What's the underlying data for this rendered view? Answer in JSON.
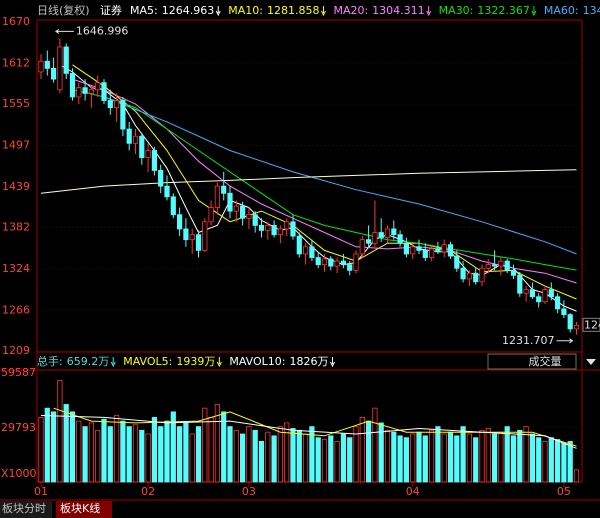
{
  "chart_data": [
    {
      "type": "candlestick",
      "header": [
        "日线(复权)",
        "证券"
      ],
      "up_color": "#ff3232",
      "down_color": "#54fcfc",
      "open": [
        1600,
        1615,
        1605,
        1575,
        1635,
        1598,
        1565,
        1578,
        1570,
        1575,
        1585,
        1560,
        1550,
        1560,
        1520,
        1500,
        1510,
        1480,
        1490,
        1462,
        1440,
        1425,
        1400,
        1380,
        1365,
        1372,
        1350,
        1390,
        1410,
        1440,
        1430,
        1405,
        1412,
        1395,
        1400,
        1385,
        1378,
        1385,
        1372,
        1380,
        1390,
        1370,
        1345,
        1355,
        1340,
        1330,
        1338,
        1328,
        1335,
        1330,
        1322,
        1345,
        1365,
        1360,
        1375,
        1368,
        1380,
        1372,
        1360,
        1345,
        1355,
        1350,
        1340,
        1352,
        1348,
        1358,
        1342,
        1325,
        1310,
        1318,
        1306,
        1325,
        1330,
        1328,
        1335,
        1322,
        1315,
        1290,
        1295,
        1285,
        1278,
        1295,
        1285,
        1268,
        1260,
        1240
      ],
      "high": [
        1625,
        1630,
        1620,
        1646.996,
        1640,
        1605,
        1585,
        1590,
        1580,
        1595,
        1590,
        1575,
        1570,
        1565,
        1530,
        1520,
        1515,
        1500,
        1495,
        1470,
        1455,
        1430,
        1410,
        1395,
        1380,
        1378,
        1395,
        1420,
        1445,
        1460,
        1440,
        1420,
        1418,
        1410,
        1405,
        1395,
        1390,
        1392,
        1385,
        1395,
        1400,
        1375,
        1360,
        1365,
        1348,
        1345,
        1342,
        1340,
        1345,
        1335,
        1350,
        1370,
        1385,
        1420,
        1395,
        1385,
        1392,
        1378,
        1368,
        1360,
        1365,
        1360,
        1356,
        1362,
        1365,
        1362,
        1350,
        1335,
        1322,
        1325,
        1330,
        1338,
        1350,
        1340,
        1338,
        1330,
        1320,
        1300,
        1305,
        1290,
        1300,
        1305,
        1290,
        1280,
        1262,
        1250
      ],
      "low": [
        1590,
        1595,
        1585,
        1570,
        1590,
        1560,
        1555,
        1560,
        1550,
        1565,
        1555,
        1540,
        1530,
        1510,
        1490,
        1485,
        1470,
        1460,
        1455,
        1430,
        1420,
        1395,
        1370,
        1355,
        1345,
        1340,
        1348,
        1385,
        1400,
        1420,
        1395,
        1390,
        1385,
        1380,
        1375,
        1368,
        1365,
        1368,
        1360,
        1370,
        1365,
        1340,
        1330,
        1335,
        1325,
        1320,
        1322,
        1318,
        1325,
        1315,
        1318,
        1340,
        1355,
        1355,
        1362,
        1360,
        1365,
        1355,
        1340,
        1338,
        1345,
        1335,
        1335,
        1345,
        1340,
        1338,
        1320,
        1305,
        1300,
        1302,
        1300,
        1318,
        1322,
        1315,
        1318,
        1310,
        1285,
        1278,
        1282,
        1270,
        1275,
        1280,
        1262,
        1255,
        1235,
        1231.707
      ],
      "close": [
        1615,
        1605,
        1590,
        1635,
        1598,
        1565,
        1578,
        1570,
        1575,
        1585,
        1560,
        1550,
        1560,
        1520,
        1500,
        1510,
        1480,
        1490,
        1462,
        1440,
        1425,
        1400,
        1380,
        1365,
        1372,
        1350,
        1390,
        1410,
        1440,
        1430,
        1405,
        1412,
        1395,
        1400,
        1385,
        1378,
        1385,
        1372,
        1380,
        1390,
        1370,
        1345,
        1355,
        1340,
        1330,
        1338,
        1328,
        1335,
        1330,
        1322,
        1345,
        1365,
        1360,
        1375,
        1368,
        1380,
        1372,
        1360,
        1345,
        1355,
        1350,
        1340,
        1352,
        1348,
        1358,
        1342,
        1325,
        1310,
        1318,
        1306,
        1325,
        1330,
        1328,
        1335,
        1322,
        1315,
        1290,
        1295,
        1285,
        1278,
        1295,
        1285,
        1268,
        1260,
        1240,
        1245
      ],
      "ylim": [
        1209,
        1670
      ],
      "yticks": [
        1670,
        1612,
        1555,
        1497,
        1439,
        1382,
        1324,
        1266,
        1209
      ],
      "xticks": [
        {
          "value": 0,
          "label": "01"
        },
        {
          "value": 17,
          "label": "02"
        },
        {
          "value": 33,
          "label": "03"
        },
        {
          "value": 59,
          "label": "04"
        },
        {
          "value": 83,
          "label": "05"
        }
      ],
      "ma_lines": [
        {
          "name": "MA5:",
          "color": "#ffffff",
          "legend_label": "1264.963",
          "x": [
            3,
            5,
            8,
            10,
            13,
            15,
            18,
            20,
            23,
            25,
            28,
            30,
            33,
            35,
            38,
            40,
            43,
            45,
            48,
            50,
            53,
            55,
            58,
            60,
            63,
            65,
            68,
            70,
            73,
            75,
            78,
            80,
            83,
            85
          ],
          "values": [
            1610,
            1600,
            1578,
            1575,
            1555,
            1525,
            1490,
            1465,
            1410,
            1375,
            1385,
            1420,
            1410,
            1392,
            1378,
            1382,
            1355,
            1340,
            1330,
            1333,
            1365,
            1372,
            1362,
            1352,
            1348,
            1348,
            1318,
            1315,
            1330,
            1325,
            1295,
            1290,
            1272,
            1264.963
          ]
        },
        {
          "name": "MA10:",
          "color": "#ffff00",
          "legend_label": "1281.858",
          "x": [
            5,
            10,
            15,
            20,
            25,
            30,
            35,
            40,
            45,
            50,
            55,
            60,
            65,
            70,
            75,
            80,
            85
          ],
          "values": [
            1610,
            1580,
            1545,
            1490,
            1420,
            1390,
            1405,
            1385,
            1350,
            1335,
            1360,
            1360,
            1350,
            1320,
            1322,
            1300,
            1281.858
          ]
        },
        {
          "name": "MA20:",
          "color": "#ff80ff",
          "legend_label": "1304.311",
          "x": [
            5,
            10,
            15,
            20,
            25,
            30,
            35,
            40,
            45,
            50,
            55,
            60,
            65,
            70,
            75,
            80,
            85
          ],
          "values": [
            1590,
            1575,
            1555,
            1520,
            1475,
            1440,
            1415,
            1395,
            1375,
            1355,
            1352,
            1355,
            1350,
            1335,
            1325,
            1318,
            1304.311
          ]
        },
        {
          "name": "MA30:",
          "color": "#00e600",
          "legend_label": "1322.367",
          "x": [
            5,
            10,
            15,
            20,
            25,
            30,
            35,
            40,
            45,
            50,
            55,
            60,
            65,
            70,
            75,
            80,
            85
          ],
          "values": [
            1575,
            1565,
            1550,
            1520,
            1490,
            1460,
            1430,
            1400,
            1385,
            1375,
            1365,
            1360,
            1352,
            1345,
            1338,
            1330,
            1322.367
          ]
        },
        {
          "name": "MA60:",
          "color": "#3fb0ff",
          "legend_label": "134",
          "x": [
            10,
            20,
            30,
            40,
            50,
            60,
            70,
            80,
            85
          ],
          "values": [
            1565,
            1530,
            1490,
            1460,
            1435,
            1415,
            1390,
            1362,
            1345
          ]
        },
        {
          "color": "#ffffc8",
          "x": [
            0,
            10,
            20,
            30,
            40,
            50,
            60,
            70,
            80,
            85
          ],
          "values": [
            1430,
            1440,
            1445,
            1448,
            1452,
            1455,
            1458,
            1460,
            1462,
            1463
          ]
        }
      ],
      "max_label": 1646.996,
      "min_label": 1231.707,
      "last_price_tag": "124"
    },
    {
      "type": "bar",
      "values": [
        35000,
        40000,
        38000,
        55000,
        42000,
        38000,
        33000,
        30000,
        32000,
        28000,
        34000,
        30000,
        36000,
        33000,
        30000,
        31000,
        28000,
        26000,
        35000,
        30000,
        33000,
        38000,
        30000,
        32000,
        26000,
        30000,
        40000,
        35000,
        42000,
        38000,
        30000,
        28000,
        26000,
        30000,
        28000,
        22000,
        27000,
        25000,
        30000,
        32000,
        29000,
        28000,
        26000,
        30000,
        24000,
        23000,
        25000,
        22000,
        26000,
        24000,
        30000,
        35000,
        33000,
        40000,
        32000,
        28000,
        27000,
        25000,
        24000,
        26000,
        27000,
        25000,
        28000,
        30000,
        26000,
        27000,
        25000,
        30000,
        26000,
        24000,
        28000,
        29000,
        26000,
        27000,
        30000,
        25000,
        28000,
        30000,
        26000,
        24000,
        22000,
        24000,
        23000,
        21000,
        22000,
        6592
      ],
      "ylim": [
        0,
        59587
      ],
      "yticks": [
        59587,
        29793
      ],
      "unit_label": "X1000",
      "total_name": "总手:",
      "total_label": "659.2万",
      "total_color": "#40e0e0",
      "lines": [
        {
          "name": "MAVOL5:",
          "color": "#ffff00",
          "legend_label": "1939万",
          "x": [
            2,
            8,
            15,
            25,
            30,
            38,
            45,
            52,
            58,
            65,
            72,
            78,
            85
          ],
          "values": [
            40000,
            33000,
            32000,
            33000,
            38000,
            27000,
            25000,
            33000,
            27000,
            27000,
            27000,
            27000,
            19390
          ]
        },
        {
          "name": "MAVOL10:",
          "color": "#ffffff",
          "legend_label": "1826万",
          "x": [
            0,
            10,
            20,
            30,
            40,
            50,
            60,
            70,
            80,
            85
          ],
          "values": [
            36000,
            35000,
            32000,
            33000,
            28000,
            26000,
            29000,
            27000,
            25000,
            18260
          ]
        }
      ]
    }
  ],
  "panel_selector": "成交量",
  "tabs": [
    "板块分时",
    "板块K线"
  ]
}
